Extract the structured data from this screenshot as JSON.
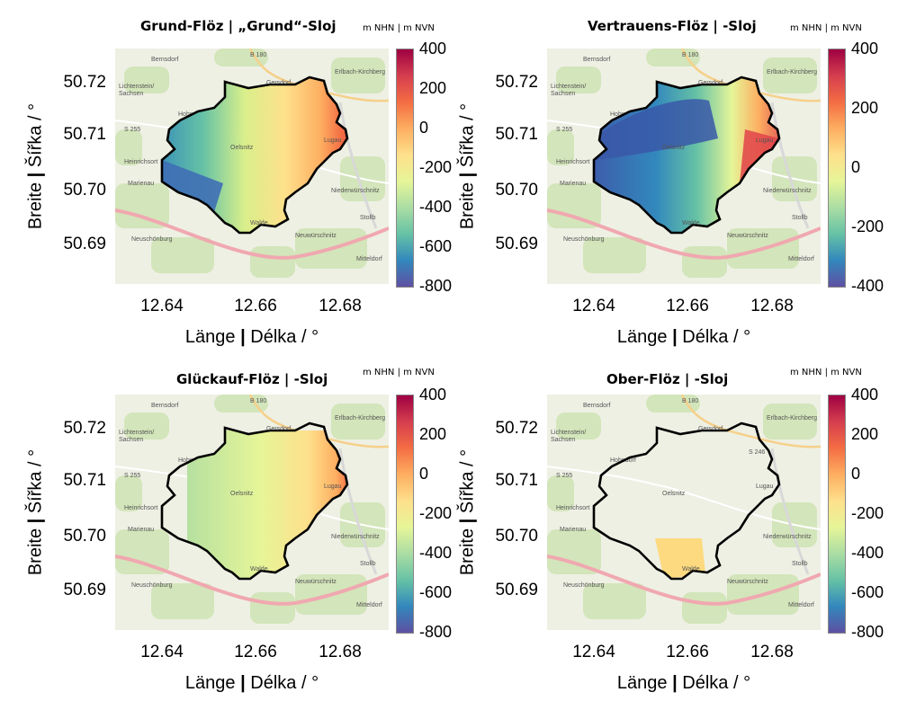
{
  "panels": [
    {
      "id": "grund",
      "title": "Grund-Flöz | „Grund“-Sloj",
      "unit": "m NHN | m NVN",
      "colorbar_ticks": [
        "400",
        "200",
        "0",
        "-200",
        "-400",
        "-600",
        "-800"
      ],
      "colorbar_range": [
        -800,
        400
      ]
    },
    {
      "id": "vertrauens",
      "title": "Vertrauens-Flöz | -Sloj",
      "unit": "m NHN | m NVN",
      "colorbar_ticks": [
        "400",
        "200",
        "0",
        "-200",
        "-400"
      ],
      "colorbar_range": [
        -400,
        400
      ]
    },
    {
      "id": "glueckauf",
      "title": "Glückauf-Flöz | -Sloj",
      "unit": "m NHN | m NVN",
      "colorbar_ticks": [
        "400",
        "200",
        "0",
        "-200",
        "-400",
        "-600",
        "-800"
      ],
      "colorbar_range": [
        -800,
        400
      ]
    },
    {
      "id": "ober",
      "title": "Ober-Flöz | -Sloj",
      "unit": "m NHN | m NVN",
      "colorbar_ticks": [
        "400",
        "200",
        "0",
        "-200",
        "-400",
        "-600",
        "-800"
      ],
      "colorbar_range": [
        -800,
        400
      ]
    }
  ],
  "axes": {
    "x_ticks": [
      "12.64",
      "12.66",
      "12.68"
    ],
    "y_ticks": [
      "50.72",
      "50.71",
      "50.70",
      "50.69"
    ],
    "xlabel_a": "Länge",
    "xlabel_sep": "|",
    "xlabel_b": "Délka / °",
    "ylabel_a": "Breite",
    "ylabel_sep": "|",
    "ylabel_b": "Šířka / °"
  },
  "map_labels": {
    "bernsdorf": "Bernsdorf",
    "b180": "B 180",
    "erlbach": "Erlbach-Kirchberg",
    "lichtenstein": "Lichtenstein/",
    "sachsen": "Sachsen",
    "hohndorf": "Hohndorf",
    "s246": "S 246",
    "s255": "S 255",
    "heinrichsort": "Heinrichsort",
    "marienau": "Marienau",
    "oelsnitz": "Oelsnitz",
    "niederwuerschnitz": "Niederwürschnitz",
    "stollberg": "Stollb",
    "neuschoenburg": "Neuschönburg",
    "neuwuerschnitz": "Neuwürschnitz",
    "mitteldorf": "Mitteldorf",
    "lugau": "Lugau",
    "gersdorf": "Gersdorf",
    "waldenburg": "Walde"
  },
  "colormap": "spectral"
}
